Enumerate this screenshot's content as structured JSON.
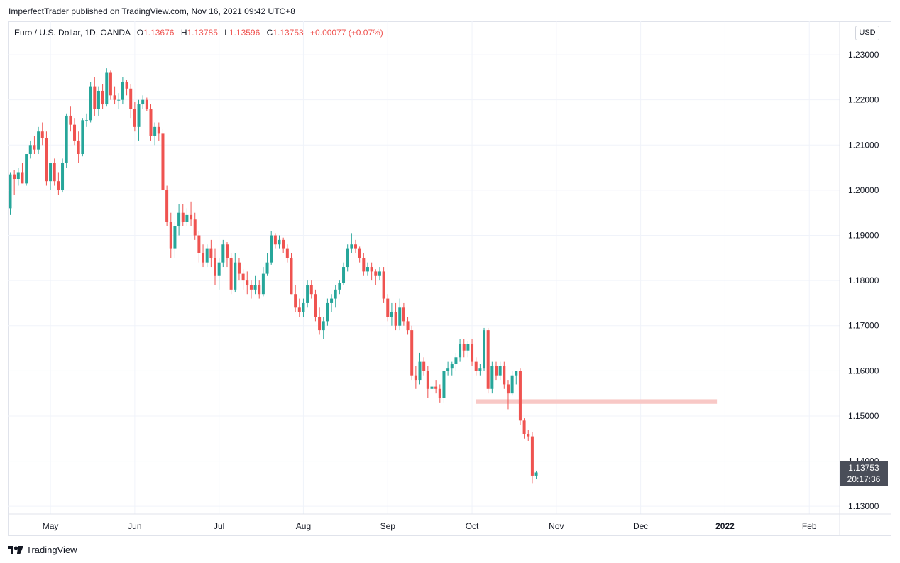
{
  "header": {
    "published_line": "ImperfectTrader published on TradingView.com, Nov 16, 2021 09:42 UTC+8"
  },
  "legend": {
    "symbol": "Euro / U.S. Dollar, 1D, OANDA",
    "open_label": "O",
    "open": "1.13676",
    "high_label": "H",
    "high": "1.13785",
    "low_label": "L",
    "low": "1.13596",
    "close_label": "C",
    "close": "1.13753",
    "change": "+0.00077 (+0.07%)"
  },
  "currency_button": "USD",
  "last_price": {
    "price": "1.13753",
    "countdown": "20:17:36"
  },
  "footer": {
    "brand": "TradingView"
  },
  "colors": {
    "up": "#26a69a",
    "down": "#ef5350",
    "zone": "#f8c8c6",
    "price_tag": "#4a4e59"
  },
  "chart_data": {
    "type": "candlestick",
    "y_tick_labels": [
      "1.23000",
      "1.22000",
      "1.21000",
      "1.20000",
      "1.19000",
      "1.18000",
      "1.17000",
      "1.16000",
      "1.15000",
      "1.14000",
      "1.13000"
    ],
    "ylim": [
      1.1283,
      1.2374
    ],
    "x_tick_labels": [
      {
        "label": "May",
        "index": 10
      },
      {
        "label": "Jun",
        "index": 31
      },
      {
        "label": "Jul",
        "index": 52
      },
      {
        "label": "Aug",
        "index": 73
      },
      {
        "label": "Sep",
        "index": 94
      },
      {
        "label": "Oct",
        "index": 115
      },
      {
        "label": "Nov",
        "index": 136
      },
      {
        "label": "Dec",
        "index": 157
      },
      {
        "label": "2022",
        "index": 178
      },
      {
        "label": "Feb",
        "index": 199
      }
    ],
    "support_zone": {
      "from_index": 116,
      "to_index": 176,
      "low": 1.1527,
      "high": 1.1537
    },
    "candles": [
      [
        1.196,
        1.204,
        1.1945,
        1.2035
      ],
      [
        1.2035,
        1.2045,
        1.199,
        1.2025
      ],
      [
        1.2025,
        1.205,
        1.201,
        1.204
      ],
      [
        1.204,
        1.206,
        1.2015,
        1.2015
      ],
      [
        1.2015,
        1.208,
        1.201,
        1.208
      ],
      [
        1.208,
        1.211,
        1.207,
        1.21
      ],
      [
        1.21,
        1.212,
        1.208,
        1.209
      ],
      [
        1.209,
        1.214,
        1.208,
        1.213
      ],
      [
        1.213,
        1.215,
        1.21,
        1.2115
      ],
      [
        1.2115,
        1.213,
        1.201,
        1.202
      ],
      [
        1.202,
        1.206,
        1.2,
        1.206
      ],
      [
        1.206,
        1.207,
        1.201,
        1.202
      ],
      [
        1.202,
        1.204,
        1.199,
        1.2
      ],
      [
        1.2,
        1.207,
        1.1995,
        1.206
      ],
      [
        1.206,
        1.217,
        1.205,
        1.2165
      ],
      [
        1.2165,
        1.2185,
        1.213,
        1.2145
      ],
      [
        1.2145,
        1.216,
        1.21,
        1.211
      ],
      [
        1.211,
        1.213,
        1.206,
        1.208
      ],
      [
        1.208,
        1.216,
        1.2075,
        1.2155
      ],
      [
        1.2155,
        1.217,
        1.214,
        1.2155
      ],
      [
        1.2155,
        1.224,
        1.215,
        1.223
      ],
      [
        1.223,
        1.225,
        1.2165,
        1.218
      ],
      [
        1.218,
        1.223,
        1.2165,
        1.222
      ],
      [
        1.222,
        1.2235,
        1.218,
        1.219
      ],
      [
        1.219,
        1.227,
        1.2185,
        1.226
      ],
      [
        1.226,
        1.2265,
        1.22,
        1.221
      ],
      [
        1.221,
        1.223,
        1.219,
        1.22
      ],
      [
        1.22,
        1.2215,
        1.218,
        1.22
      ],
      [
        1.22,
        1.225,
        1.219,
        1.224
      ],
      [
        1.224,
        1.2245,
        1.221,
        1.2225
      ],
      [
        1.2225,
        1.2235,
        1.216,
        1.218
      ],
      [
        1.218,
        1.2195,
        1.213,
        1.214
      ],
      [
        1.214,
        1.22,
        1.211,
        1.219
      ],
      [
        1.219,
        1.221,
        1.218,
        1.22
      ],
      [
        1.22,
        1.2205,
        1.2175,
        1.218
      ],
      [
        1.218,
        1.219,
        1.211,
        1.212
      ],
      [
        1.212,
        1.215,
        1.21,
        1.214
      ],
      [
        1.214,
        1.215,
        1.211,
        1.2125
      ],
      [
        1.2125,
        1.2135,
        1.2,
        1.2
      ],
      [
        1.2,
        1.201,
        1.192,
        1.193
      ],
      [
        1.193,
        1.195,
        1.185,
        1.187
      ],
      [
        1.187,
        1.193,
        1.185,
        1.192
      ],
      [
        1.192,
        1.197,
        1.19,
        1.195
      ],
      [
        1.195,
        1.197,
        1.192,
        1.193
      ],
      [
        1.193,
        1.196,
        1.192,
        1.1945
      ],
      [
        1.1945,
        1.1975,
        1.192,
        1.1935
      ],
      [
        1.1935,
        1.195,
        1.189,
        1.19
      ],
      [
        1.19,
        1.191,
        1.184,
        1.186
      ],
      [
        1.186,
        1.188,
        1.183,
        1.184
      ],
      [
        1.184,
        1.188,
        1.183,
        1.187
      ],
      [
        1.187,
        1.189,
        1.183,
        1.185
      ],
      [
        1.185,
        1.187,
        1.179,
        1.181
      ],
      [
        1.181,
        1.185,
        1.178,
        1.184
      ],
      [
        1.184,
        1.189,
        1.183,
        1.188
      ],
      [
        1.188,
        1.1885,
        1.183,
        1.185
      ],
      [
        1.185,
        1.186,
        1.177,
        1.178
      ],
      [
        1.178,
        1.186,
        1.1775,
        1.184
      ],
      [
        1.184,
        1.185,
        1.18,
        1.1815
      ],
      [
        1.1815,
        1.1825,
        1.178,
        1.18
      ],
      [
        1.18,
        1.182,
        1.177,
        1.179
      ],
      [
        1.179,
        1.18,
        1.176,
        1.178
      ],
      [
        1.178,
        1.181,
        1.177,
        1.179
      ],
      [
        1.179,
        1.18,
        1.176,
        1.177
      ],
      [
        1.177,
        1.183,
        1.1765,
        1.1815
      ],
      [
        1.1815,
        1.186,
        1.181,
        1.184
      ],
      [
        1.184,
        1.191,
        1.1835,
        1.19
      ],
      [
        1.19,
        1.1905,
        1.187,
        1.188
      ],
      [
        1.188,
        1.19,
        1.187,
        1.189
      ],
      [
        1.189,
        1.1895,
        1.186,
        1.187
      ],
      [
        1.187,
        1.188,
        1.184,
        1.185
      ],
      [
        1.185,
        1.186,
        1.177,
        1.177
      ],
      [
        1.177,
        1.179,
        1.173,
        1.174
      ],
      [
        1.174,
        1.176,
        1.172,
        1.173
      ],
      [
        1.173,
        1.176,
        1.172,
        1.175
      ],
      [
        1.175,
        1.18,
        1.174,
        1.179
      ],
      [
        1.179,
        1.18,
        1.176,
        1.177
      ],
      [
        1.177,
        1.178,
        1.171,
        1.172
      ],
      [
        1.172,
        1.174,
        1.168,
        1.169
      ],
      [
        1.169,
        1.172,
        1.167,
        1.171
      ],
      [
        1.171,
        1.176,
        1.17,
        1.175
      ],
      [
        1.175,
        1.177,
        1.173,
        1.176
      ],
      [
        1.176,
        1.179,
        1.174,
        1.178
      ],
      [
        1.178,
        1.18,
        1.177,
        1.1795
      ],
      [
        1.1795,
        1.184,
        1.179,
        1.183
      ],
      [
        1.183,
        1.188,
        1.182,
        1.187
      ],
      [
        1.187,
        1.1905,
        1.186,
        1.188
      ],
      [
        1.188,
        1.189,
        1.186,
        1.187
      ],
      [
        1.187,
        1.1875,
        1.184,
        1.185
      ],
      [
        1.185,
        1.186,
        1.181,
        1.182
      ],
      [
        1.182,
        1.184,
        1.181,
        1.183
      ],
      [
        1.183,
        1.184,
        1.18,
        1.182
      ],
      [
        1.182,
        1.1825,
        1.179,
        1.181
      ],
      [
        1.181,
        1.183,
        1.18,
        1.182
      ],
      [
        1.182,
        1.183,
        1.175,
        1.176
      ],
      [
        1.176,
        1.177,
        1.171,
        1.172
      ],
      [
        1.172,
        1.175,
        1.17,
        1.173
      ],
      [
        1.173,
        1.175,
        1.169,
        1.17
      ],
      [
        1.17,
        1.176,
        1.169,
        1.174
      ],
      [
        1.174,
        1.175,
        1.17,
        1.171
      ],
      [
        1.171,
        1.172,
        1.168,
        1.169
      ],
      [
        1.169,
        1.17,
        1.158,
        1.159
      ],
      [
        1.159,
        1.161,
        1.156,
        1.158
      ],
      [
        1.158,
        1.164,
        1.157,
        1.162
      ],
      [
        1.162,
        1.163,
        1.159,
        1.16
      ],
      [
        1.16,
        1.161,
        1.154,
        1.156
      ],
      [
        1.156,
        1.158,
        1.1545,
        1.1565
      ],
      [
        1.1565,
        1.158,
        1.155,
        1.156
      ],
      [
        1.156,
        1.157,
        1.153,
        1.154
      ],
      [
        1.154,
        1.16,
        1.153,
        1.16
      ],
      [
        1.16,
        1.162,
        1.159,
        1.1605
      ],
      [
        1.1605,
        1.162,
        1.159,
        1.1615
      ],
      [
        1.1615,
        1.164,
        1.16,
        1.163
      ],
      [
        1.163,
        1.167,
        1.162,
        1.166
      ],
      [
        1.166,
        1.167,
        1.163,
        1.1645
      ],
      [
        1.1645,
        1.1665,
        1.163,
        1.166
      ],
      [
        1.166,
        1.167,
        1.161,
        1.162
      ],
      [
        1.162,
        1.163,
        1.159,
        1.16
      ],
      [
        1.16,
        1.1615,
        1.159,
        1.1605
      ],
      [
        1.1605,
        1.1695,
        1.16,
        1.169
      ],
      [
        1.169,
        1.1695,
        1.155,
        1.156
      ],
      [
        1.156,
        1.162,
        1.155,
        1.161
      ],
      [
        1.161,
        1.162,
        1.158,
        1.159
      ],
      [
        1.159,
        1.162,
        1.158,
        1.161
      ],
      [
        1.161,
        1.162,
        1.156,
        1.157
      ],
      [
        1.157,
        1.158,
        1.1515,
        1.155
      ],
      [
        1.155,
        1.16,
        1.1545,
        1.159
      ],
      [
        1.159,
        1.16,
        1.157,
        1.16
      ],
      [
        1.16,
        1.1605,
        1.148,
        1.149
      ],
      [
        1.149,
        1.1495,
        1.145,
        1.146
      ],
      [
        1.146,
        1.147,
        1.1445,
        1.1455
      ],
      [
        1.1455,
        1.1465,
        1.135,
        1.1368
      ],
      [
        1.1368,
        1.1379,
        1.136,
        1.1375
      ]
    ]
  }
}
